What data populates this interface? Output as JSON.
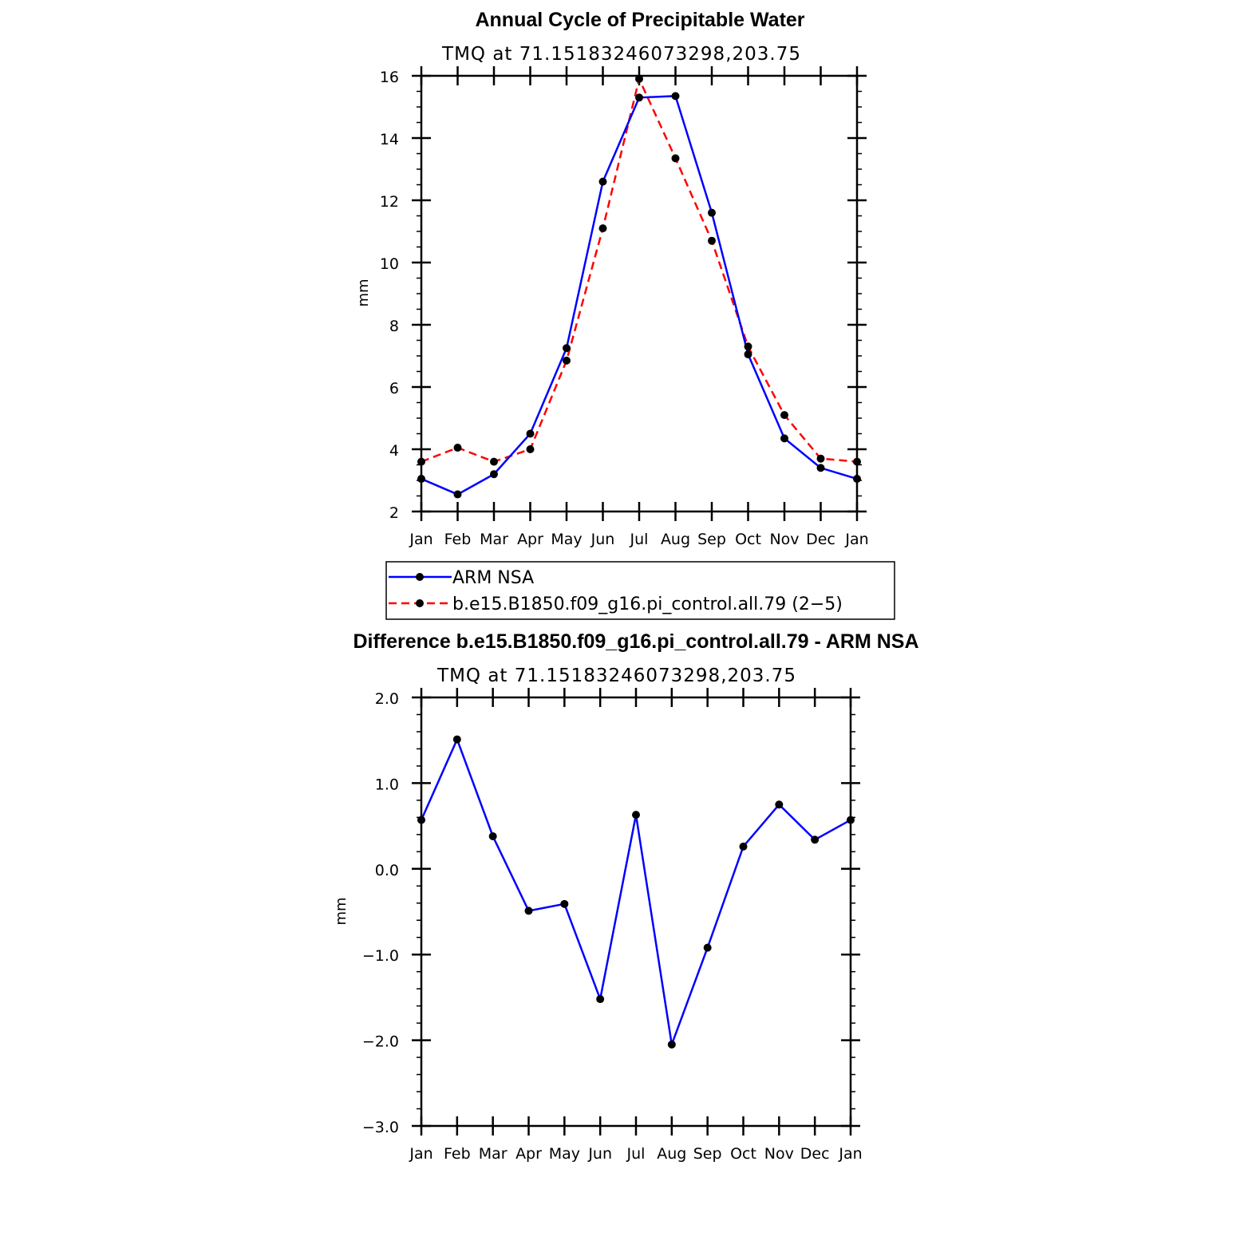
{
  "chart_data": [
    {
      "type": "line",
      "title": "Annual Cycle of Precipitable Water",
      "subtitle": "TMQ  at  71.15183246073298,203.75",
      "xlabel": "",
      "ylabel": "mm",
      "categories": [
        "Jan",
        "Feb",
        "Mar",
        "Apr",
        "May",
        "Jun",
        "Jul",
        "Aug",
        "Sep",
        "Oct",
        "Nov",
        "Dec",
        "Jan"
      ],
      "ylim": [
        2,
        16
      ],
      "yticks": [
        "2",
        "4",
        "6",
        "8",
        "10",
        "12",
        "14",
        "16"
      ],
      "grid": false,
      "series": [
        {
          "name": "ARM  NSA",
          "color": "#0000ff",
          "dash": "solid",
          "values": [
            3.05,
            2.55,
            3.2,
            4.5,
            7.25,
            12.6,
            15.3,
            15.35,
            11.6,
            7.05,
            4.35,
            3.4,
            3.05
          ]
        },
        {
          "name": "b.e15.B1850.f09_g16.pi_control.all.79  (2−5)",
          "color": "#ff0000",
          "dash": "dashed",
          "values": [
            3.6,
            4.05,
            3.6,
            4.0,
            6.85,
            11.1,
            15.9,
            13.35,
            10.7,
            7.3,
            5.1,
            3.7,
            3.6
          ]
        }
      ],
      "legend": {
        "position": "below"
      }
    },
    {
      "type": "line",
      "title": "Difference b.e15.B1850.f09_g16.pi_control.all.79 - ARM NSA",
      "subtitle": "TMQ  at  71.15183246073298,203.75",
      "xlabel": "",
      "ylabel": "mm",
      "categories": [
        "Jan",
        "Feb",
        "Mar",
        "Apr",
        "May",
        "Jun",
        "Jul",
        "Aug",
        "Sep",
        "Oct",
        "Nov",
        "Dec",
        "Jan"
      ],
      "ylim": [
        -3.0,
        2.0
      ],
      "yticks": [
        "−3.0",
        "−2.0",
        "−1.0",
        "0.0",
        "1.0",
        "2.0"
      ],
      "grid": false,
      "series": [
        {
          "color": "#0000ff",
          "dash": "solid",
          "values": [
            0.57,
            1.51,
            0.38,
            -0.49,
            -0.41,
            -1.52,
            0.63,
            -2.05,
            -0.92,
            0.26,
            0.75,
            0.34,
            0.57
          ]
        }
      ]
    }
  ]
}
